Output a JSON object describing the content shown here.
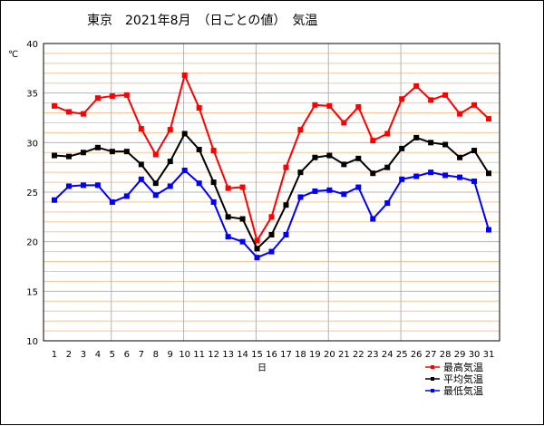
{
  "chart_data": {
    "type": "line",
    "title": "東京　2021年8月　（日ごとの値）　気温",
    "ylabel": "℃",
    "xlabel": "日",
    "ylim": [
      10,
      40
    ],
    "yticks": [
      10,
      15,
      20,
      25,
      30,
      35,
      40
    ],
    "x": [
      1,
      2,
      3,
      4,
      5,
      6,
      7,
      8,
      9,
      10,
      11,
      12,
      13,
      14,
      15,
      16,
      17,
      18,
      19,
      20,
      21,
      22,
      23,
      24,
      25,
      26,
      27,
      28,
      29,
      30,
      31
    ],
    "grid": true,
    "legend_position": "bottom-right",
    "series": [
      {
        "name": "最高気温",
        "color": "#ff0000",
        "values": [
          33.7,
          33.1,
          32.9,
          34.5,
          34.7,
          34.8,
          31.4,
          28.8,
          31.3,
          36.8,
          33.5,
          29.2,
          25.4,
          25.5,
          20.1,
          22.5,
          27.5,
          31.3,
          33.8,
          33.7,
          32.0,
          33.6,
          30.2,
          30.9,
          34.4,
          35.7,
          34.3,
          34.8,
          32.9,
          33.8,
          32.4
        ]
      },
      {
        "name": "平均気温",
        "color": "#000000",
        "values": [
          28.7,
          28.6,
          29.0,
          29.5,
          29.1,
          29.1,
          27.8,
          25.9,
          28.1,
          30.9,
          29.3,
          26.0,
          22.5,
          22.3,
          19.3,
          20.7,
          23.7,
          27.0,
          28.5,
          28.7,
          27.8,
          28.4,
          26.9,
          27.5,
          29.4,
          30.5,
          30.0,
          29.8,
          28.5,
          29.2,
          26.9
        ]
      },
      {
        "name": "最低気温",
        "color": "#0000ff",
        "values": [
          24.2,
          25.6,
          25.7,
          25.7,
          24.0,
          24.6,
          26.3,
          24.7,
          25.6,
          27.2,
          25.9,
          24.0,
          20.5,
          20.0,
          18.4,
          19.0,
          20.7,
          24.5,
          25.1,
          25.2,
          24.8,
          25.5,
          22.3,
          23.9,
          26.3,
          26.6,
          27.0,
          26.7,
          26.5,
          26.1,
          21.2
        ]
      }
    ]
  }
}
